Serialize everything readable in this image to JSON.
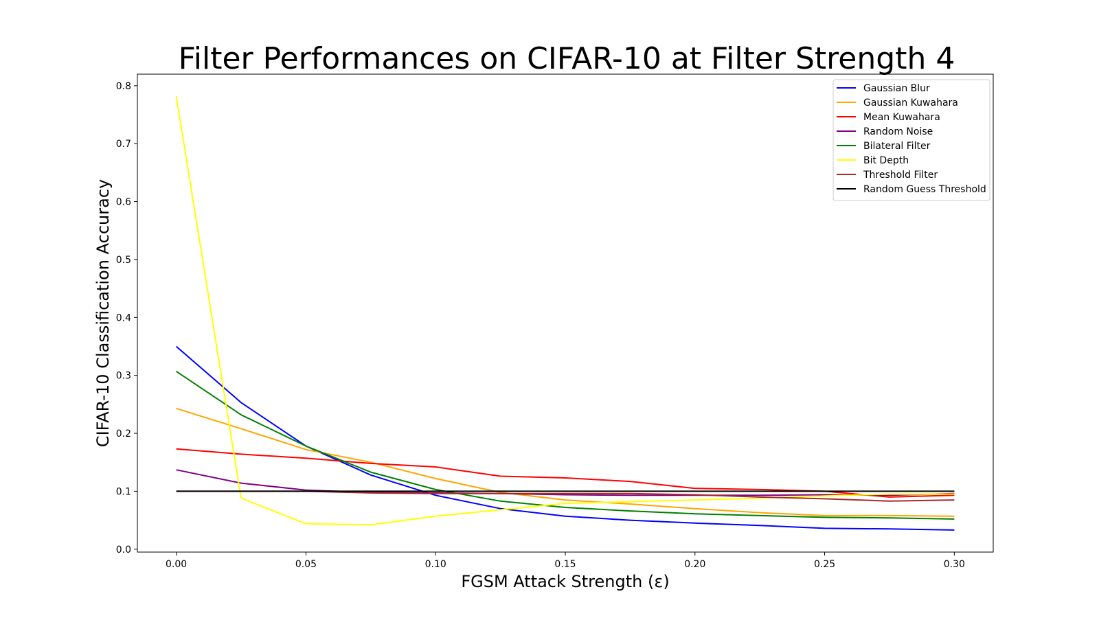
{
  "chart_data": {
    "type": "line",
    "title": "Filter Performances on CIFAR-10 at Filter Strength 4",
    "xlabel": "FGSM Attack Strength (ε)",
    "ylabel": "CIFAR-10 Classification Accuracy",
    "xlim": [
      -0.015,
      0.315
    ],
    "ylim": [
      -0.005,
      0.82
    ],
    "xticks": [
      0.0,
      0.05,
      0.1,
      0.15,
      0.2,
      0.25,
      0.3
    ],
    "xtick_labels": [
      "0.00",
      "0.05",
      "0.10",
      "0.15",
      "0.20",
      "0.25",
      "0.30"
    ],
    "yticks": [
      0.0,
      0.1,
      0.2,
      0.3,
      0.4,
      0.5,
      0.6,
      0.7,
      0.8
    ],
    "ytick_labels": [
      "0.0",
      "0.1",
      "0.2",
      "0.3",
      "0.4",
      "0.5",
      "0.6",
      "0.7",
      "0.8"
    ],
    "grid": false,
    "legend_position": "top-right",
    "x": [
      0.0,
      0.025,
      0.05,
      0.075,
      0.1,
      0.125,
      0.15,
      0.175,
      0.2,
      0.225,
      0.25,
      0.275,
      0.3
    ],
    "series": [
      {
        "name": "Gaussian Blur",
        "color": "#0000ff",
        "values": [
          0.35,
          0.253,
          0.178,
          0.128,
          0.093,
          0.07,
          0.057,
          0.05,
          0.045,
          0.041,
          0.036,
          0.035,
          0.033
        ]
      },
      {
        "name": "Gaussian Kuwahara",
        "color": "#ffa500",
        "values": [
          0.243,
          0.208,
          0.172,
          0.15,
          0.122,
          0.098,
          0.085,
          0.078,
          0.07,
          0.063,
          0.058,
          0.058,
          0.057
        ]
      },
      {
        "name": "Mean Kuwahara",
        "color": "#ff0000",
        "values": [
          0.173,
          0.164,
          0.157,
          0.148,
          0.142,
          0.126,
          0.123,
          0.117,
          0.105,
          0.103,
          0.1,
          0.09,
          0.093
        ]
      },
      {
        "name": "Random Noise",
        "color": "#800080",
        "values": [
          0.137,
          0.114,
          0.102,
          0.098,
          0.097,
          0.096,
          0.094,
          0.093,
          0.093,
          0.093,
          0.094,
          0.093,
          0.096
        ]
      },
      {
        "name": "Bilateral Filter",
        "color": "#008000",
        "values": [
          0.307,
          0.232,
          0.178,
          0.133,
          0.103,
          0.083,
          0.072,
          0.066,
          0.061,
          0.058,
          0.055,
          0.054,
          0.052
        ]
      },
      {
        "name": "Bit Depth",
        "color": "#ffff00",
        "values": [
          0.782,
          0.088,
          0.044,
          0.042,
          0.057,
          0.068,
          0.079,
          0.082,
          0.085,
          0.088,
          0.092,
          0.095,
          0.095
        ]
      },
      {
        "name": "Threshold Filter",
        "color": "#a52a2a",
        "values": [
          0.1,
          0.1,
          0.1,
          0.097,
          0.096,
          0.096,
          0.096,
          0.096,
          0.094,
          0.09,
          0.087,
          0.083,
          0.085
        ]
      },
      {
        "name": "Random Guess Threshold",
        "color": "#000000",
        "values": [
          0.1,
          0.1,
          0.1,
          0.1,
          0.1,
          0.1,
          0.1,
          0.1,
          0.1,
          0.1,
          0.1,
          0.1,
          0.1
        ]
      }
    ]
  }
}
